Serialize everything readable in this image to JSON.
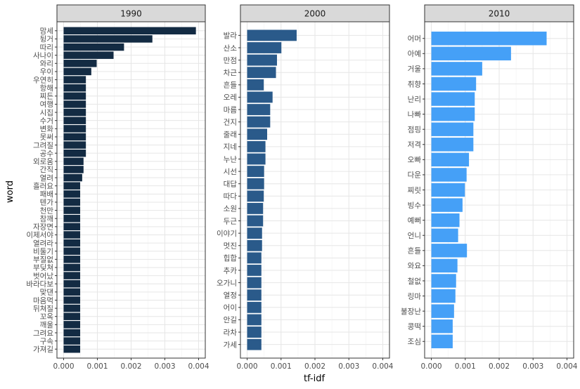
{
  "chart_data": {
    "type": "bar",
    "orientation": "horizontal",
    "xlabel": "tf-idf",
    "ylabel": "word",
    "xlim": [
      0,
      0.004
    ],
    "xticks": [
      "0.000",
      "0.001",
      "0.002",
      "0.003",
      "0.004"
    ],
    "grid": true,
    "facets": [
      {
        "title": "1990",
        "color": "#132B43",
        "categories": [
          "맘세",
          "뒹거",
          "따리",
          "사나이",
          "와리",
          "우이",
          "우연히",
          "항해",
          "찌든",
          "여행",
          "시집",
          "수거",
          "변화",
          "못써",
          "그려질",
          "공수",
          "외로움",
          "간직",
          "열려",
          "흘러요",
          "패배",
          "텐가",
          "천만",
          "참깨",
          "자장면",
          "이제서야",
          "열려라",
          "비둘기",
          "부질없",
          "부딪쳐",
          "벗어났",
          "바라다보",
          "맞댄",
          "마음먹",
          "뒤쳐질",
          "꼬옥",
          "깨울",
          "그려요",
          "구속",
          "가져길"
        ],
        "values": [
          0.00392,
          0.00263,
          0.00179,
          0.00148,
          0.00098,
          0.00082,
          0.00066,
          0.00066,
          0.00066,
          0.00066,
          0.00066,
          0.00066,
          0.00066,
          0.00066,
          0.00066,
          0.00066,
          0.00059,
          0.00059,
          0.00055,
          0.00049,
          0.00049,
          0.00049,
          0.00049,
          0.00049,
          0.00049,
          0.00049,
          0.00049,
          0.00049,
          0.00049,
          0.00049,
          0.00049,
          0.00049,
          0.00049,
          0.00049,
          0.00049,
          0.00049,
          0.00049,
          0.00049,
          0.00049,
          0.00049
        ]
      },
      {
        "title": "2000",
        "color": "#2A5A8A",
        "categories": [
          "발라",
          "산소",
          "만점",
          "차근",
          "흔들",
          "오레",
          "마름",
          "건지",
          "줄래",
          "지네",
          "누난",
          "시선",
          "대답",
          "따다",
          "소원",
          "두근",
          "이야기",
          "멋진",
          "힙합",
          "추카",
          "오가니",
          "열정",
          "어이",
          "안길",
          "라차",
          "가세"
        ],
        "values": [
          0.00146,
          0.00101,
          0.00088,
          0.00085,
          0.00049,
          0.00075,
          0.00068,
          0.00068,
          0.00059,
          0.00054,
          0.00054,
          0.0005,
          0.0005,
          0.00049,
          0.00047,
          0.00047,
          0.00044,
          0.00044,
          0.00042,
          0.00042,
          0.00042,
          0.00042,
          0.00042,
          0.00042,
          0.00042,
          0.00042
        ]
      },
      {
        "title": "2010",
        "color": "#45A0F7",
        "categories": [
          "어머",
          "아예",
          "거울",
          "취향",
          "난리",
          "나빠",
          "점핑",
          "저격",
          "오빠",
          "다운",
          "찌릿",
          "빙수",
          "예뻐",
          "언니",
          "흔들",
          "와요",
          "철없",
          "링마",
          "불장난",
          "콩떡",
          "조심"
        ],
        "values": [
          0.0034,
          0.00235,
          0.0015,
          0.00132,
          0.00128,
          0.00128,
          0.00124,
          0.00124,
          0.00111,
          0.00104,
          0.00099,
          0.00092,
          0.00083,
          0.00079,
          0.00105,
          0.00077,
          0.00073,
          0.00071,
          0.00067,
          0.00063,
          0.00063
        ]
      }
    ]
  }
}
